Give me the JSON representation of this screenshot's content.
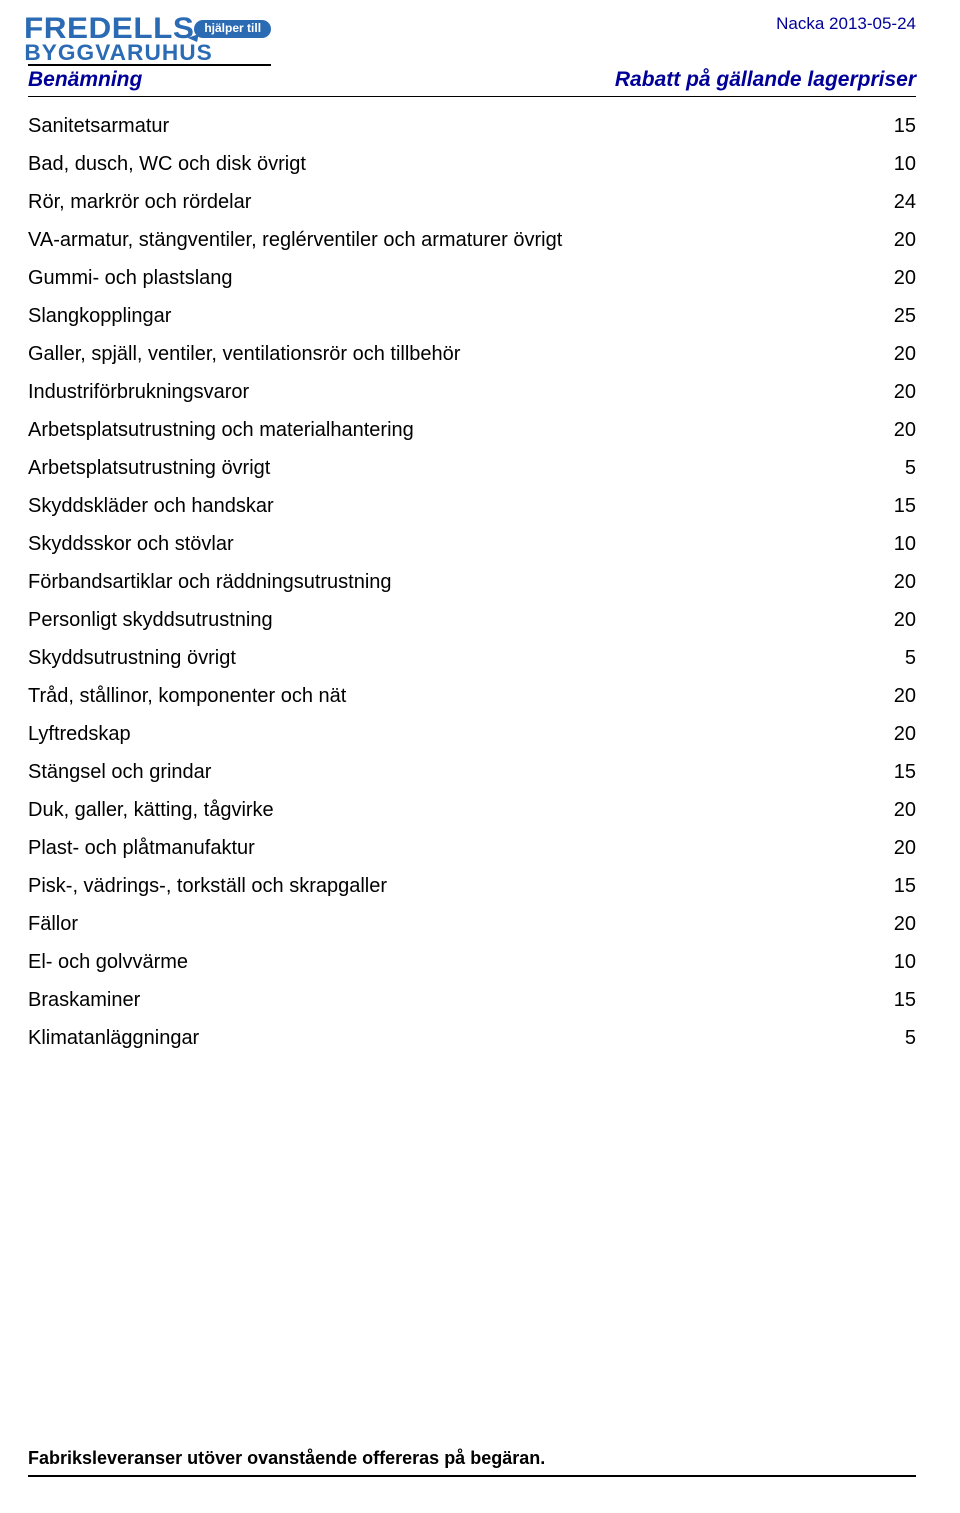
{
  "logo": {
    "top_text": "FREDELLS",
    "pill_text": "hjälper till",
    "sub_text": "BYGGVARUHUS",
    "primary_color": "#2b6bb3",
    "pill_bg": "#2b6bb3",
    "pill_text_color": "#ffffff",
    "top_fontsize": 30,
    "sub_fontsize": 22,
    "pill_fontsize": 12
  },
  "date_label": "Nacka 2013-05-24",
  "header": {
    "left": "Benämning",
    "right": "Rabatt på gällande lagerpriser"
  },
  "rows": [
    {
      "label": "Sanitetsarmatur",
      "value": "15"
    },
    {
      "label": "Bad, dusch, WC och disk övrigt",
      "value": "10"
    },
    {
      "label": "Rör, markrör och rördelar",
      "value": "24"
    },
    {
      "label": "VA-armatur, stängventiler, reglérventiler och armaturer övrigt",
      "value": "20"
    },
    {
      "label": "Gummi- och plastslang",
      "value": "20"
    },
    {
      "label": "Slangkopplingar",
      "value": "25"
    },
    {
      "label": "Galler, spjäll, ventiler, ventilationsrör och tillbehör",
      "value": "20"
    },
    {
      "label": "Industriförbrukningsvaror",
      "value": "20"
    },
    {
      "label": "Arbetsplatsutrustning och materialhantering",
      "value": "20"
    },
    {
      "label": "Arbetsplatsutrustning övrigt",
      "value": "5"
    },
    {
      "label": "Skyddskläder och handskar",
      "value": "15"
    },
    {
      "label": "Skyddsskor och stövlar",
      "value": "10"
    },
    {
      "label": "Förbandsartiklar och räddningsutrustning",
      "value": "20"
    },
    {
      "label": "Personligt skyddsutrustning",
      "value": "20"
    },
    {
      "label": "Skyddsutrustning övrigt",
      "value": "5"
    },
    {
      "label": "Tråd, stållinor, komponenter och nät",
      "value": "20"
    },
    {
      "label": "Lyftredskap",
      "value": "20"
    },
    {
      "label": "Stängsel och grindar",
      "value": "15"
    },
    {
      "label": "Duk,  galler, kätting, tågvirke",
      "value": "20"
    },
    {
      "label": "Plast- och plåtmanufaktur",
      "value": "20"
    },
    {
      "label": "Pisk-, vädrings-, torkställ och skrapgaller",
      "value": "15"
    },
    {
      "label": "Fällor",
      "value": "20"
    },
    {
      "label": "El- och golvvärme",
      "value": "10"
    },
    {
      "label": "Braskaminer",
      "value": "15"
    },
    {
      "label": "Klimatanläggningar",
      "value": "5"
    }
  ],
  "footer_text": "Fabriksleveranser utöver ovanstående offereras på begäran.",
  "colors": {
    "text": "#000000",
    "header_blue": "#000099",
    "rule": "#000000",
    "background": "#ffffff"
  },
  "table_style": {
    "row_fontsize": 20,
    "line_height": 1.9,
    "value_align": "right"
  }
}
